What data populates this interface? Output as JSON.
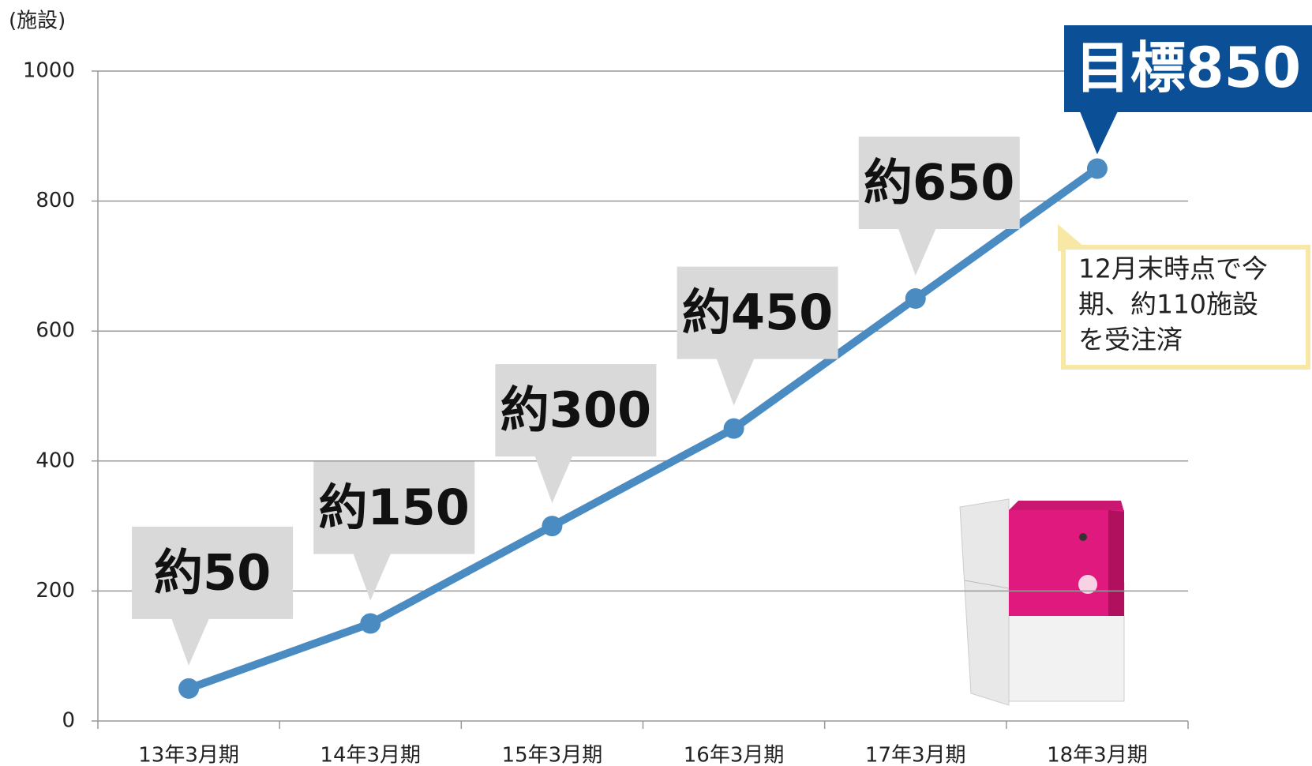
{
  "chart_data": {
    "type": "line",
    "y_label": "(施設)",
    "categories": [
      "13年3月期",
      "14年3月期",
      "15年3月期",
      "16年3月期",
      "17年3月期",
      "18年3月期"
    ],
    "values": [
      50,
      150,
      300,
      450,
      650,
      850
    ],
    "value_labels": [
      "約50",
      "約150",
      "約300",
      "約450",
      "約650",
      "目標850"
    ],
    "label_box_colors": [
      "#d9d9d9",
      "#d9d9d9",
      "#d9d9d9",
      "#d9d9d9",
      "#d9d9d9",
      "#0b4f96"
    ],
    "color": "#4a8bc2",
    "ylim": [
      0,
      1000
    ],
    "yticks": [
      0,
      200,
      400,
      600,
      800,
      1000
    ],
    "grid": true,
    "annotation": [
      "12月末時点で今",
      "期、約110施設",
      "を受注済"
    ]
  }
}
